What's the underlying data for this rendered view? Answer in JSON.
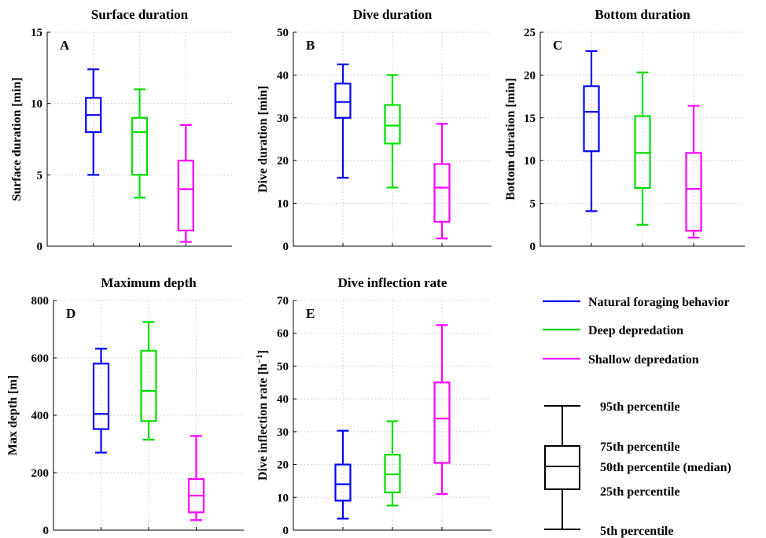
{
  "chart_data": [
    {
      "type": "box",
      "panel_label": "A",
      "title": "Surface duration",
      "ylabel": "Surface duration [min]",
      "ylim": [
        0,
        15
      ],
      "yticks": [
        0,
        5,
        10,
        15
      ],
      "grid": true,
      "series": [
        {
          "name": "Natural foraging behavior",
          "color": "#0000ff",
          "p5": 5,
          "p25": 8,
          "median": 9.2,
          "p75": 10.4,
          "p95": 12.4
        },
        {
          "name": "Deep depredation",
          "color": "#00dd00",
          "p5": 3.4,
          "p25": 5,
          "median": 8,
          "p75": 9,
          "p95": 11
        },
        {
          "name": "Shallow depredation",
          "color": "#ff00ff",
          "p5": 0.3,
          "p25": 1.1,
          "median": 4,
          "p75": 6,
          "p95": 8.5
        }
      ]
    },
    {
      "type": "box",
      "panel_label": "B",
      "title": "Dive duration",
      "ylabel": "Dive duration [min]",
      "ylim": [
        0,
        50
      ],
      "yticks": [
        0,
        10,
        20,
        30,
        40,
        50
      ],
      "grid": true,
      "series": [
        {
          "name": "Natural foraging behavior",
          "color": "#0000ff",
          "p5": 16,
          "p25": 30,
          "median": 33.7,
          "p75": 38,
          "p95": 42.5
        },
        {
          "name": "Deep depredation",
          "color": "#00dd00",
          "p5": 13.7,
          "p25": 24,
          "median": 28.2,
          "p75": 33,
          "p95": 40
        },
        {
          "name": "Shallow depredation",
          "color": "#ff00ff",
          "p5": 1.8,
          "p25": 5.7,
          "median": 13.7,
          "p75": 19.2,
          "p95": 28.6
        }
      ]
    },
    {
      "type": "box",
      "panel_label": "C",
      "title": "Bottom duration",
      "ylabel": "Bottom duration [min]",
      "ylim": [
        0,
        25
      ],
      "yticks": [
        0,
        5,
        10,
        15,
        20,
        25
      ],
      "grid": true,
      "series": [
        {
          "name": "Natural foraging behavior",
          "color": "#0000ff",
          "p5": 4.1,
          "p25": 11.1,
          "median": 15.7,
          "p75": 18.7,
          "p95": 22.8
        },
        {
          "name": "Deep depredation",
          "color": "#00dd00",
          "p5": 2.5,
          "p25": 6.8,
          "median": 10.9,
          "p75": 15.2,
          "p95": 20.3
        },
        {
          "name": "Shallow depredation",
          "color": "#ff00ff",
          "p5": 1,
          "p25": 1.8,
          "median": 6.7,
          "p75": 10.9,
          "p95": 16.4
        }
      ]
    },
    {
      "type": "box",
      "panel_label": "D",
      "title": "Maximum depth",
      "ylabel": "Max depth [m]",
      "ylim": [
        0,
        800
      ],
      "yticks": [
        0,
        200,
        400,
        600,
        800
      ],
      "grid": true,
      "series": [
        {
          "name": "Natural foraging behavior",
          "color": "#0000ff",
          "p5": 270,
          "p25": 352,
          "median": 405,
          "p75": 580,
          "p95": 632
        },
        {
          "name": "Deep depredation",
          "color": "#00dd00",
          "p5": 315,
          "p25": 380,
          "median": 485,
          "p75": 625,
          "p95": 725
        },
        {
          "name": "Shallow depredation",
          "color": "#ff00ff",
          "p5": 35,
          "p25": 62,
          "median": 120,
          "p75": 178,
          "p95": 328
        }
      ]
    },
    {
      "type": "box",
      "panel_label": "E",
      "title": "Dive inflection rate",
      "ylabel": "Dive inflection rate [h",
      "ylabel_sup": "−1",
      "ylabel_end": "]",
      "ylim": [
        0,
        70
      ],
      "yticks": [
        0,
        10,
        20,
        30,
        40,
        50,
        60,
        70
      ],
      "grid": true,
      "series": [
        {
          "name": "Natural foraging behavior",
          "color": "#0000ff",
          "p5": 3.5,
          "p25": 9,
          "median": 14,
          "p75": 20,
          "p95": 30.3
        },
        {
          "name": "Deep depredation",
          "color": "#00dd00",
          "p5": 7.5,
          "p25": 11.5,
          "median": 17,
          "p75": 23,
          "p95": 33.2
        },
        {
          "name": "Shallow depredation",
          "color": "#ff00ff",
          "p5": 11,
          "p25": 20.5,
          "median": 34,
          "p75": 45,
          "p95": 62.5
        }
      ]
    }
  ],
  "legend": {
    "entries": [
      {
        "label": "Natural foraging behavior",
        "color": "#0000ff"
      },
      {
        "label": "Deep depredation",
        "color": "#00dd00"
      },
      {
        "label": "Shallow depredation",
        "color": "#ff00ff"
      }
    ],
    "key": {
      "p95": "95th percentile",
      "p75": "75th percentile",
      "p50": "50th percentile (median)",
      "p25": "25th percentile",
      "p5": "5th percentile"
    }
  }
}
